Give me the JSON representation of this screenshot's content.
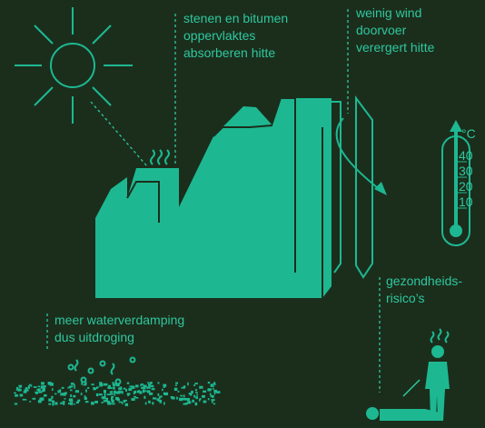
{
  "annotations": [
    {
      "lines": [
        "stenen en bitumen",
        "oppervlaktes",
        "absorberen hitte"
      ]
    },
    {
      "lines": [
        "weinig wind",
        "doorvoer",
        "verergert hitte"
      ]
    },
    {
      "lines": [
        "gezondheids-",
        "risico’s"
      ]
    },
    {
      "lines": [
        "meer waterverdamping",
        "dus uitdroging"
      ]
    }
  ],
  "thermometer": {
    "unit": "°C",
    "labels": [
      "40",
      "30",
      "20",
      "10"
    ]
  }
}
